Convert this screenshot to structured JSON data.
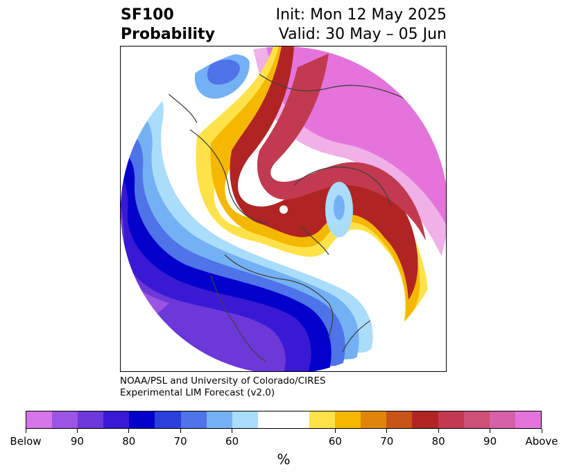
{
  "title": {
    "left_line1": "SF100",
    "left_line2": "Probability",
    "right_line1": "Init: Mon 12 May 2025",
    "right_line2": "Valid: 30 May – 05 Jun"
  },
  "credit": {
    "line1": "NOAA/PSL and University of Colorado/CIRES",
    "line2": "Experimental LIM Forecast (v2.0)"
  },
  "colorbar": {
    "unit": "%",
    "colors": [
      "#d674ea",
      "#9b54e3",
      "#6c38d8",
      "#3a19d4",
      "#0300cc",
      "#2a3fdc",
      "#4f73e8",
      "#74b1f4",
      "#aadcfc",
      "#ffffff",
      "#ffe24a",
      "#f5b800",
      "#e0850a",
      "#c65418",
      "#b02424",
      "#c23a50",
      "#cc5078",
      "#d661a8",
      "#e474dc"
    ],
    "tick_labels": [
      "Below",
      "90",
      "80",
      "70",
      "60",
      "60",
      "70",
      "80",
      "90",
      "Above"
    ]
  }
}
